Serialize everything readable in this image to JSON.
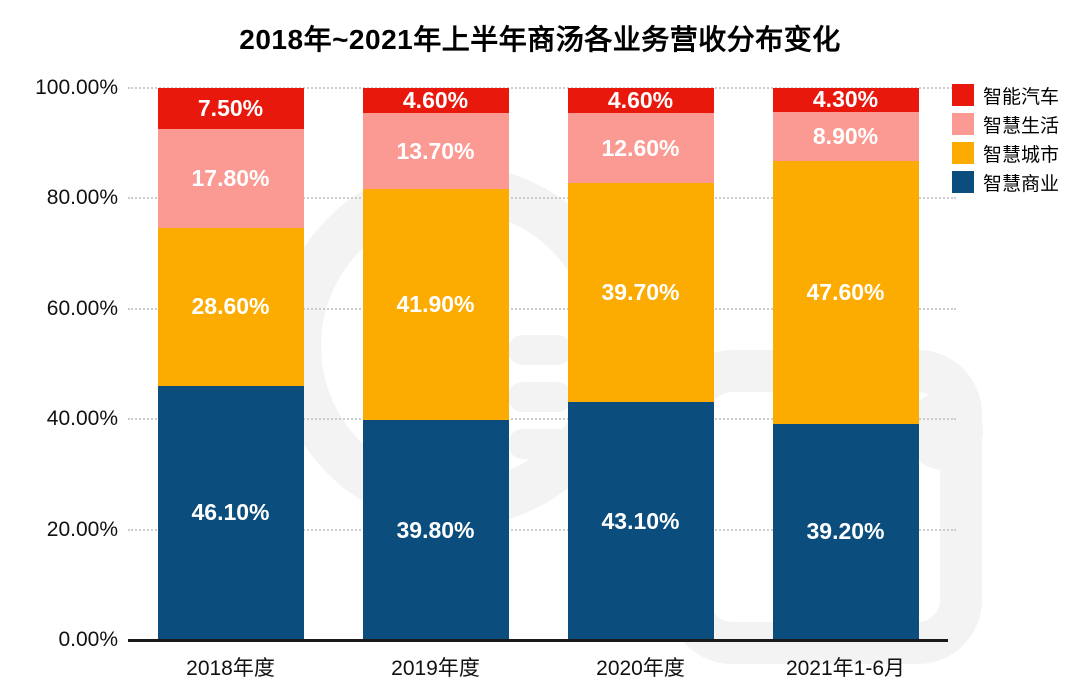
{
  "chart_data": {
    "type": "bar",
    "stacked": true,
    "percent_stacked": true,
    "title": "2018年~2021年上半年商汤各业务营收分布变化",
    "categories": [
      "2018年度",
      "2019年度",
      "2020年度",
      "2021年1-6月"
    ],
    "series": [
      {
        "name": "智慧商业",
        "color": "#0b4d7d",
        "values": [
          46.1,
          39.8,
          43.1,
          39.2
        ],
        "labels": [
          "46.10%",
          "39.80%",
          "43.10%",
          "39.20%"
        ]
      },
      {
        "name": "智慧城市",
        "color": "#fcac00",
        "values": [
          28.6,
          41.9,
          39.7,
          47.6
        ],
        "labels": [
          "28.60%",
          "41.90%",
          "39.70%",
          "47.60%"
        ]
      },
      {
        "name": "智慧生活",
        "color": "#fa9a93",
        "values": [
          17.8,
          13.7,
          12.6,
          8.9
        ],
        "labels": [
          "17.80%",
          "13.70%",
          "12.60%",
          "8.90%"
        ]
      },
      {
        "name": "智能汽车",
        "color": "#e8180d",
        "values": [
          7.5,
          4.6,
          4.6,
          4.3
        ],
        "labels": [
          "7.50%",
          "4.60%",
          "4.60%",
          "4.30%"
        ]
      }
    ],
    "legend": [
      {
        "label": "智能汽车",
        "color": "#e8180d"
      },
      {
        "label": "智慧生活",
        "color": "#fa9a93"
      },
      {
        "label": "智慧城市",
        "color": "#fcac00"
      },
      {
        "label": "智慧商业",
        "color": "#0b4d7d"
      }
    ],
    "yticks": [
      {
        "value": 0,
        "label": "0.00%"
      },
      {
        "value": 20,
        "label": "20.00%"
      },
      {
        "value": 40,
        "label": "40.00%"
      },
      {
        "value": 60,
        "label": "60.00%"
      },
      {
        "value": 80,
        "label": "80.00%"
      },
      {
        "value": 100,
        "label": "100.00%"
      }
    ],
    "ylim": [
      0,
      100
    ],
    "grid": "horizontal-dotted",
    "legend_position": "right-top",
    "label_color": "#ffffff",
    "axis_color": "#1a1a1a"
  }
}
